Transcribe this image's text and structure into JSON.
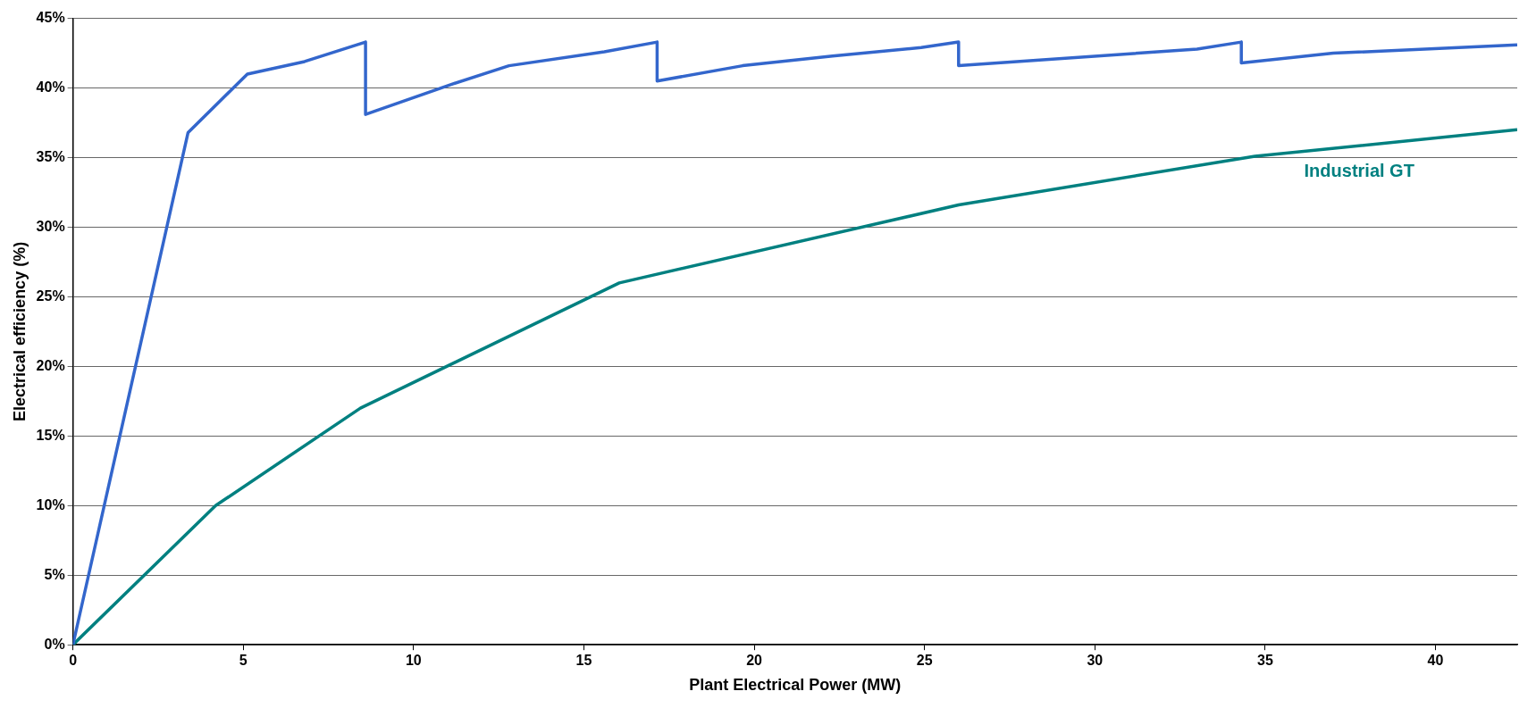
{
  "chart_data": {
    "type": "line",
    "xlabel": "Plant Electrical Power (MW)",
    "ylabel": "Electrical efficiency (%)",
    "xlim": [
      0,
      42.4
    ],
    "xticks": [
      0,
      5,
      10,
      15,
      20,
      25,
      30,
      35,
      40
    ],
    "ylim": [
      0,
      45
    ],
    "yticks": [
      {
        "value": 0,
        "label": "0%"
      },
      {
        "value": 5,
        "label": "5%"
      },
      {
        "value": 10,
        "label": "10%"
      },
      {
        "value": 15,
        "label": "15%"
      },
      {
        "value": 20,
        "label": "20%"
      },
      {
        "value": 25,
        "label": "25%"
      },
      {
        "value": 30,
        "label": "30%"
      },
      {
        "value": 35,
        "label": "35%"
      },
      {
        "value": 40,
        "label": "40%"
      },
      {
        "value": 45,
        "label": "45%"
      }
    ],
    "grid": "y",
    "legend": false,
    "marker": "none",
    "line_style": "solid",
    "series": [
      {
        "color": "#3366cc",
        "x": [
          0,
          3.38,
          5.12,
          6.8,
          8.59,
          8.59,
          11.16,
          12.8,
          15.6,
          17.15,
          17.15,
          19.66,
          22.3,
          24.9,
          26.0,
          26.0,
          33.0,
          34.3,
          34.3,
          37.0,
          42.4
        ],
        "values": [
          0,
          36.8,
          41.0,
          41.9,
          43.3,
          38.1,
          40.3,
          41.6,
          42.6,
          43.3,
          40.5,
          41.6,
          42.3,
          42.9,
          43.3,
          41.6,
          42.8,
          43.3,
          41.8,
          42.5,
          43.1
        ]
      },
      {
        "name": "Industrial GT",
        "color": "#008080",
        "x": [
          0,
          4.19,
          8.44,
          16.04,
          26.0,
          34.7,
          42.4
        ],
        "values": [
          0,
          10.0,
          17.0,
          26.0,
          31.6,
          35.1,
          37.0
        ]
      }
    ]
  }
}
